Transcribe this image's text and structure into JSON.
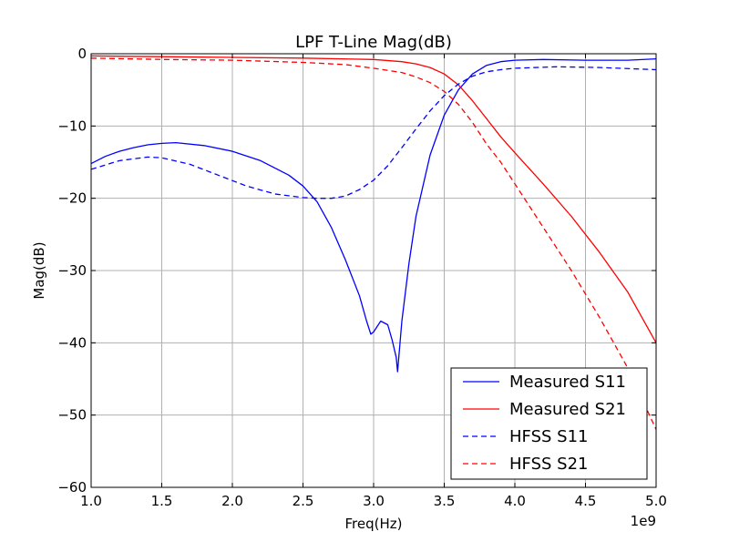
{
  "chart_data": {
    "type": "line",
    "title": "LPF T-Line Mag(dB)",
    "xlabel": "Freq(Hz)",
    "ylabel": "Mag(dB)",
    "x_offset_label": "1e9",
    "xlim": [
      1.0,
      5.0
    ],
    "ylim": [
      -60,
      0
    ],
    "x_ticks": [
      "1.0",
      "1.5",
      "2.0",
      "2.5",
      "3.0",
      "3.5",
      "4.0",
      "4.5",
      "5.0"
    ],
    "y_ticks": [
      "0",
      "−10",
      "−20",
      "−30",
      "−40",
      "−50",
      "−60"
    ],
    "grid": true,
    "legend_position": "lower-right",
    "series": [
      {
        "name": "Measured S11",
        "color": "#0000ff",
        "style": "solid",
        "x": [
          1.0,
          1.1,
          1.2,
          1.3,
          1.4,
          1.5,
          1.6,
          1.8,
          2.0,
          2.2,
          2.4,
          2.5,
          2.6,
          2.7,
          2.8,
          2.9,
          2.95,
          2.98,
          3.0,
          3.05,
          3.1,
          3.13,
          3.16,
          3.17,
          3.2,
          3.25,
          3.3,
          3.4,
          3.5,
          3.6,
          3.7,
          3.8,
          3.9,
          4.0,
          4.2,
          4.5,
          4.8,
          5.0
        ],
        "y": [
          -15.2,
          -14.2,
          -13.5,
          -13.0,
          -12.6,
          -12.4,
          -12.3,
          -12.7,
          -13.5,
          -14.8,
          -16.8,
          -18.3,
          -20.5,
          -24.0,
          -28.5,
          -33.5,
          -37.0,
          -38.8,
          -38.5,
          -37.0,
          -37.5,
          -39.5,
          -42.0,
          -44.0,
          -37.0,
          -29.0,
          -22.5,
          -14.0,
          -8.5,
          -5.0,
          -2.8,
          -1.6,
          -1.1,
          -0.9,
          -0.8,
          -0.9,
          -0.9,
          -0.7
        ]
      },
      {
        "name": "Measured S21",
        "color": "#ff0000",
        "style": "solid",
        "x": [
          1.0,
          1.5,
          2.0,
          2.5,
          3.0,
          3.2,
          3.3,
          3.4,
          3.5,
          3.6,
          3.7,
          3.8,
          3.9,
          4.0,
          4.2,
          4.4,
          4.6,
          4.8,
          5.0
        ],
        "y": [
          -0.3,
          -0.4,
          -0.5,
          -0.6,
          -0.8,
          -1.1,
          -1.4,
          -1.9,
          -2.8,
          -4.3,
          -6.5,
          -9.0,
          -11.5,
          -13.7,
          -18.0,
          -22.5,
          -27.5,
          -33.0,
          -40.0
        ]
      },
      {
        "name": "HFSS S11",
        "color": "#0000ff",
        "style": "dashed",
        "x": [
          1.0,
          1.2,
          1.4,
          1.5,
          1.7,
          1.9,
          2.1,
          2.3,
          2.5,
          2.6,
          2.7,
          2.8,
          2.9,
          3.0,
          3.1,
          3.2,
          3.3,
          3.4,
          3.5,
          3.6,
          3.7,
          3.8,
          3.9,
          4.0,
          4.3,
          4.6,
          5.0
        ],
        "y": [
          -16.0,
          -14.8,
          -14.3,
          -14.4,
          -15.3,
          -16.8,
          -18.3,
          -19.4,
          -19.9,
          -20.0,
          -20.0,
          -19.7,
          -18.8,
          -17.5,
          -15.5,
          -13.0,
          -10.4,
          -7.9,
          -5.8,
          -4.2,
          -3.1,
          -2.5,
          -2.2,
          -2.0,
          -1.8,
          -1.9,
          -2.2
        ]
      },
      {
        "name": "HFSS S21",
        "color": "#ff0000",
        "style": "dashed",
        "x": [
          1.0,
          1.5,
          2.0,
          2.5,
          2.8,
          3.0,
          3.2,
          3.3,
          3.4,
          3.5,
          3.6,
          3.7,
          3.8,
          3.9,
          4.0,
          4.2,
          4.4,
          4.6,
          4.8,
          5.0
        ],
        "y": [
          -0.6,
          -0.8,
          -0.9,
          -1.2,
          -1.5,
          -2.0,
          -2.6,
          -3.2,
          -4.0,
          -5.2,
          -7.0,
          -9.5,
          -12.5,
          -15.0,
          -18.0,
          -24.0,
          -30.0,
          -36.5,
          -43.5,
          -52.0
        ]
      }
    ]
  }
}
